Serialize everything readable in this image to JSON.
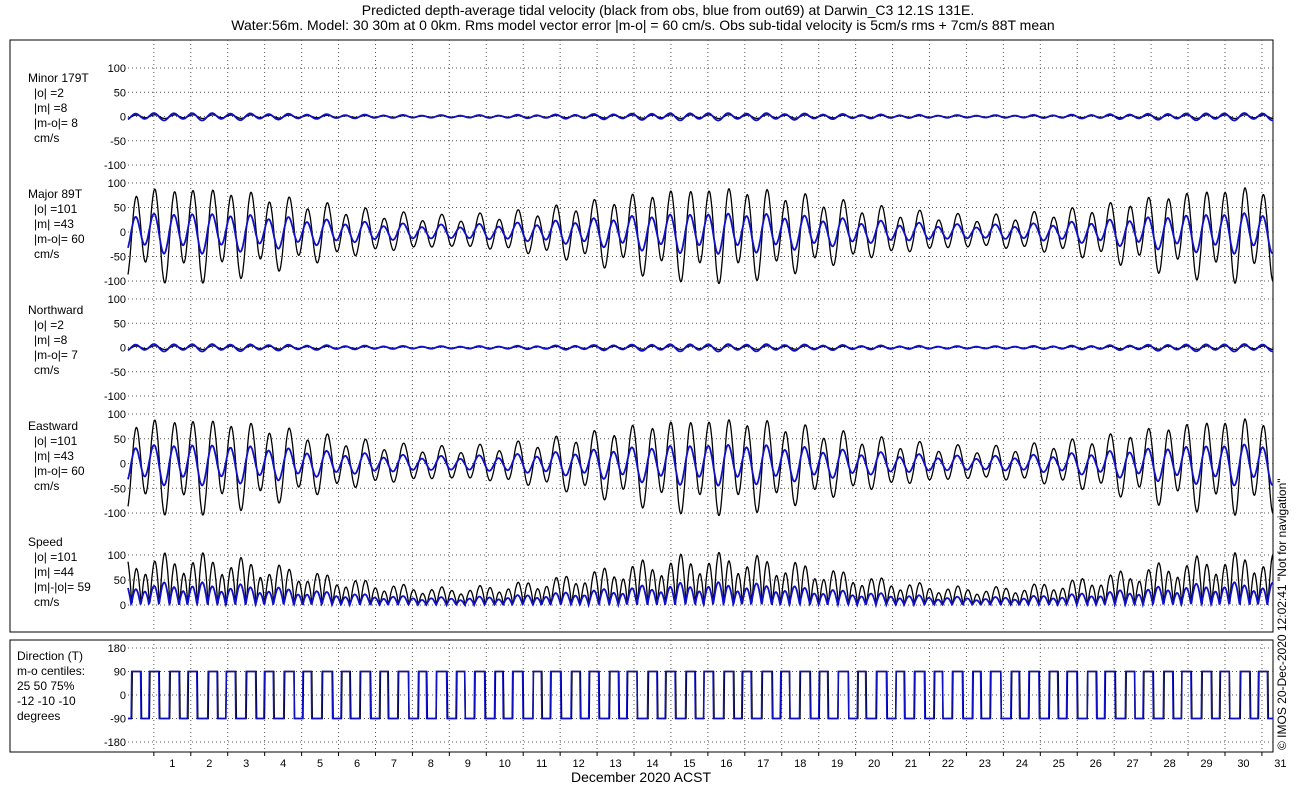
{
  "title_line1": "Predicted depth-average tidal velocity (black from obs, blue from out69) at Darwin_C3 12.1S 131E.",
  "title_line2": "Water:56m. Model: 30 30m at 0 0km. Rms model vector error |m-o| = 60 cm/s. Obs sub-tidal velocity is 5cm/s rms + 7cm/s 88T mean",
  "side_note": "© IMOS 20-Dec-2020 12:02:41  \"Not for navigation\"",
  "colors": {
    "obs": "#000000",
    "model": "#1010c8",
    "grid": "#555555"
  },
  "chart_data": {
    "type": "line",
    "xlabel": "December 2020 ACST",
    "x_tick_labels": [
      "1",
      "2",
      "3",
      "4",
      "5",
      "6",
      "7",
      "8",
      "9",
      "10",
      "11",
      "12",
      "13",
      "14",
      "15",
      "16",
      "17",
      "18",
      "19",
      "20",
      "21",
      "22",
      "23",
      "24",
      "25",
      "26",
      "27",
      "28",
      "29",
      "30",
      "31"
    ],
    "x_range_days": [
      0.3,
      31.3
    ],
    "series_legend": {
      "obs": "black from obs",
      "model": "blue from out69"
    },
    "panels": [
      {
        "key": "minor",
        "label_lines": [
          "Minor 179T",
          "|o| =2",
          "|m| =8",
          "|m-o|= 8",
          "cm/s"
        ],
        "ylim": [
          -100,
          100
        ],
        "yticks": [
          100,
          50,
          0,
          -50,
          -100
        ],
        "obs": {
          "mean": 0,
          "amplitude": 4
        },
        "model": {
          "mean": 0,
          "amplitude": 8
        }
      },
      {
        "key": "major",
        "label_lines": [
          "Major 89T",
          "|o| =101",
          "|m| =43",
          "|m-o|= 60",
          "cm/s"
        ],
        "ylim": [
          -100,
          100
        ],
        "yticks": [
          100,
          50,
          0,
          -50,
          -100
        ],
        "obs": {
          "mean": 0,
          "amplitude": 101
        },
        "model": {
          "mean": 0,
          "amplitude": 43
        }
      },
      {
        "key": "northward",
        "label_lines": [
          "Northward",
          "|o| =2",
          "|m| =8",
          "|m-o|= 7",
          "cm/s"
        ],
        "ylim": [
          -100,
          100
        ],
        "yticks": [
          100,
          50,
          0,
          -50,
          -100
        ],
        "obs": {
          "mean": 0,
          "amplitude": 4
        },
        "model": {
          "mean": 0,
          "amplitude": 8
        }
      },
      {
        "key": "eastward",
        "label_lines": [
          "Eastward",
          "|o| =101",
          "|m| =43",
          "|m-o|= 60",
          "cm/s"
        ],
        "ylim": [
          -100,
          100
        ],
        "yticks": [
          100,
          50,
          0,
          -50,
          -100
        ],
        "obs": {
          "mean": 0,
          "amplitude": 101
        },
        "model": {
          "mean": 0,
          "amplitude": 43
        }
      },
      {
        "key": "speed",
        "label_lines": [
          "Speed",
          "|o| =101",
          "|m| =44",
          "|m|-|o|= 59",
          "cm/s"
        ],
        "ylim": [
          0,
          100
        ],
        "yticks": [
          100,
          50,
          0
        ],
        "obs": {
          "amplitude": 101
        },
        "model": {
          "amplitude": 44
        }
      },
      {
        "key": "direction",
        "label_lines": [
          "Direction (T)",
          "m-o centiles:",
          "25  50  75%",
          "-12 -10 -10",
          "degrees"
        ],
        "ylim": [
          -180,
          180
        ],
        "yticks": [
          180,
          90,
          0,
          -90,
          -180
        ],
        "levels_deg": [
          90,
          -90
        ]
      }
    ],
    "tide": {
      "M2_period_days": 0.5175,
      "K1_period_days": 0.9973,
      "springs_day": [
        1.8,
        16.2,
        30.6
      ],
      "neaps_day": [
        9.0,
        23.4
      ]
    }
  }
}
